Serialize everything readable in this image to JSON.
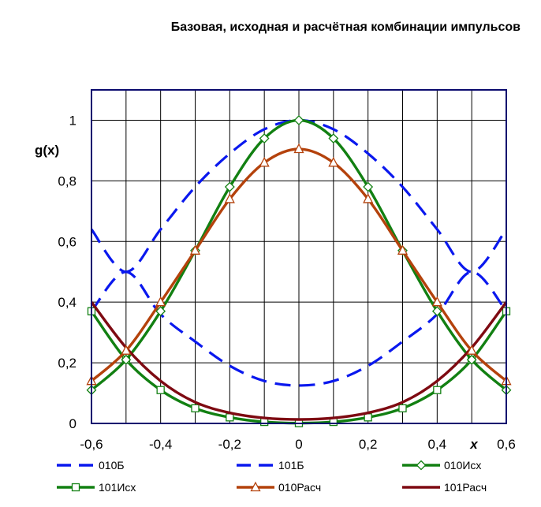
{
  "chart_data": {
    "type": "line",
    "title": "Базовая, исходная и расчётная комбинации импульсов",
    "xlabel": "x",
    "ylabel": "g(x)",
    "xlim": [
      -0.6,
      0.6
    ],
    "ylim": [
      0,
      1.1
    ],
    "grid": true,
    "legend_position": "bottom",
    "x_ticks": [
      "-0,6",
      "-0,4",
      "-0,2",
      "0",
      "0,2",
      "0,4",
      "0,6"
    ],
    "y_ticks": [
      "0",
      "0,2",
      "0,4",
      "0,6",
      "0,8",
      "1"
    ],
    "colors": {
      "blue": "#0a18ee",
      "green": "#128012",
      "orange": "#b4420c",
      "darkred": "#7e0a12",
      "plot_border": "#0a0a6e",
      "grid": "#000000"
    },
    "x": [
      -0.6,
      -0.5,
      -0.4,
      -0.3,
      -0.2,
      -0.1,
      0,
      0.1,
      0.2,
      0.3,
      0.4,
      0.5,
      0.6
    ],
    "series": [
      {
        "name": "010Б",
        "color": "#0a18ee",
        "style": "dashed",
        "marker": "none",
        "values": [
          0.64,
          0.5,
          0.64,
          0.78,
          0.89,
          0.97,
          1.0,
          0.97,
          0.89,
          0.78,
          0.64,
          0.5,
          0.64
        ]
      },
      {
        "name": "101Б",
        "color": "#0a18ee",
        "style": "dashed",
        "marker": "none",
        "values": [
          0.37,
          0.5,
          0.36,
          0.27,
          0.19,
          0.14,
          0.125,
          0.14,
          0.19,
          0.27,
          0.36,
          0.5,
          0.37
        ]
      },
      {
        "name": "010Исх",
        "color": "#128012",
        "style": "solid",
        "marker": "diamond",
        "values": [
          0.11,
          0.21,
          0.37,
          0.57,
          0.78,
          0.94,
          1.0,
          0.94,
          0.78,
          0.57,
          0.37,
          0.21,
          0.11
        ]
      },
      {
        "name": "101Исх",
        "color": "#128012",
        "style": "solid",
        "marker": "square",
        "values": [
          0.37,
          0.21,
          0.11,
          0.05,
          0.02,
          0.005,
          0.001,
          0.005,
          0.02,
          0.05,
          0.11,
          0.21,
          0.37
        ]
      },
      {
        "name": "010Расч",
        "color": "#b4420c",
        "style": "solid",
        "marker": "triangle",
        "values": [
          0.14,
          0.24,
          0.4,
          0.57,
          0.74,
          0.86,
          0.905,
          0.86,
          0.74,
          0.57,
          0.4,
          0.24,
          0.14
        ]
      },
      {
        "name": "101Расч",
        "color": "#7e0a12",
        "style": "solid",
        "marker": "none",
        "values": [
          0.4,
          0.25,
          0.14,
          0.07,
          0.035,
          0.018,
          0.013,
          0.018,
          0.035,
          0.07,
          0.14,
          0.25,
          0.4
        ]
      }
    ]
  }
}
